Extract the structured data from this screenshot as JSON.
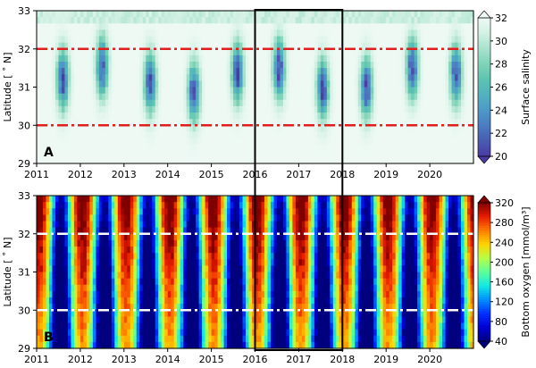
{
  "chart_data": [
    {
      "type": "heatmap",
      "panel_label": "A",
      "xlabel": "",
      "ylabel": "Latitude [ ˚ N]",
      "xlim": [
        2011,
        2021
      ],
      "ylim": [
        29,
        33
      ],
      "x_ticks": [
        "2011",
        "2012",
        "2013",
        "2014",
        "2015",
        "2016",
        "2017",
        "2018",
        "2019",
        "2020"
      ],
      "y_ticks": [
        "29",
        "30",
        "31",
        "32",
        "33"
      ],
      "colorbar": {
        "label": "Surface salinity",
        "range": [
          20,
          32
        ],
        "ticks": [
          "20",
          "22",
          "24",
          "26",
          "28",
          "30",
          "32"
        ],
        "colors": [
          "#4b3aa3",
          "#4a5cb2",
          "#4b7cc2",
          "#4e99c7",
          "#52b2bf",
          "#5cc4b0",
          "#7fd3b8",
          "#a9e2cd",
          "#d2f1e4",
          "#eef9f4"
        ]
      },
      "reference_lines": [
        {
          "lat": 30,
          "style": "dash-dot",
          "color": "#e21e1e"
        },
        {
          "lat": 32,
          "style": "dash-dot",
          "color": "#e21e1e"
        }
      ],
      "low_salinity_event_years": [
        2011.6,
        2012.5,
        2013.6,
        2014.6,
        2015.6,
        2016.55,
        2017.55,
        2018.55,
        2019.6,
        2020.6
      ]
    },
    {
      "type": "heatmap",
      "panel_label": "B",
      "xlabel": "",
      "ylabel": "Latitude [ ˚ N]",
      "xlim": [
        2011,
        2021
      ],
      "ylim": [
        29,
        33
      ],
      "x_ticks": [
        "2011",
        "2012",
        "2013",
        "2014",
        "2015",
        "2016",
        "2017",
        "2018",
        "2019",
        "2020"
      ],
      "y_ticks": [
        "29",
        "30",
        "31",
        "32",
        "33"
      ],
      "colorbar": {
        "label": "Bottom oxygen [mmol/m³]",
        "range": [
          40,
          320
        ],
        "ticks": [
          "40",
          "80",
          "120",
          "160",
          "200",
          "240",
          "280",
          "320"
        ],
        "colors": [
          "#00007f",
          "#0000d6",
          "#0030ff",
          "#0090ff",
          "#12e9e1",
          "#5cff9a",
          "#b6ff46",
          "#ffd300",
          "#ff7b00",
          "#e81b00",
          "#7f0000"
        ]
      },
      "reference_lines": [
        {
          "lat": 30,
          "style": "dash-dot",
          "color": "#ffffff"
        },
        {
          "lat": 32,
          "style": "dash-dot",
          "color": "#ffffff"
        }
      ],
      "low_oxygen_event_years": [
        2011.55,
        2012.55,
        2013.55,
        2014.55,
        2015.55,
        2016.6,
        2017.55,
        2018.55,
        2019.55,
        2020.55
      ]
    }
  ],
  "highlight_box": {
    "x_range": [
      2016,
      2018
    ],
    "lat_range": [
      29,
      33
    ],
    "color": "#000000"
  }
}
